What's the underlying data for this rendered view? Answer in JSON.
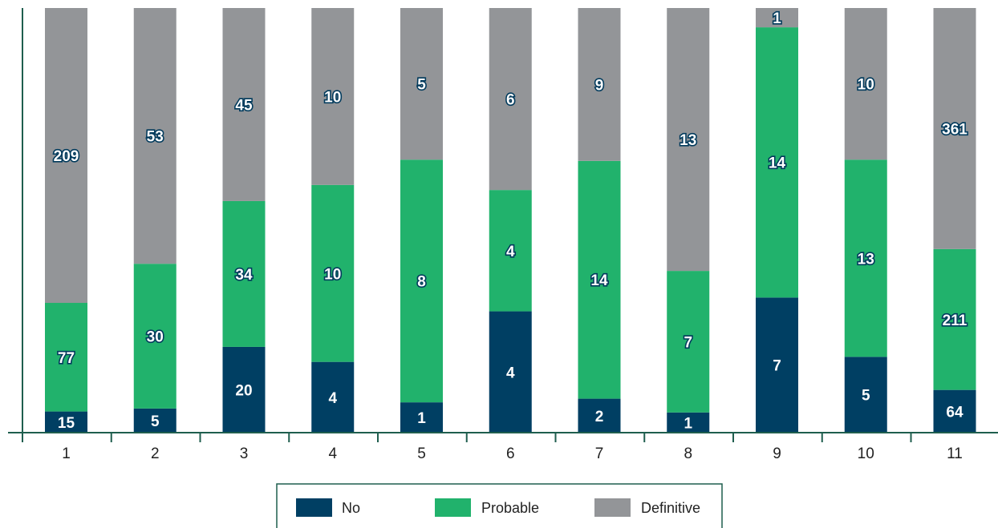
{
  "chart_data": {
    "type": "bar",
    "stacked": true,
    "normalized": true,
    "categories": [
      "1",
      "2",
      "3",
      "4",
      "5",
      "6",
      "7",
      "8",
      "9",
      "10",
      "11"
    ],
    "series": [
      {
        "name": "No",
        "color": "#003f63",
        "values": [
          15,
          5,
          20,
          4,
          1,
          4,
          2,
          1,
          7,
          5,
          64
        ]
      },
      {
        "name": "Probable",
        "color": "#21b26c",
        "values": [
          77,
          30,
          34,
          10,
          8,
          4,
          14,
          7,
          14,
          13,
          211
        ]
      },
      {
        "name": "Definitive",
        "color": "#939598",
        "values": [
          209,
          53,
          45,
          10,
          5,
          6,
          9,
          13,
          1,
          10,
          361
        ]
      }
    ],
    "legend_position": "bottom-center",
    "grid": false,
    "axis_color": "#1f5e4e"
  }
}
